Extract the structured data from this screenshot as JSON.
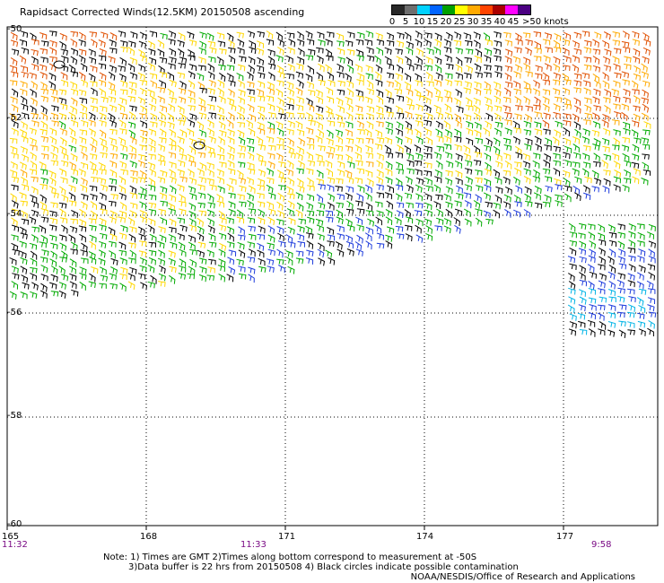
{
  "title": "Rapidsact Corrected Winds(12.5KM) 20150508 ascending",
  "legend": {
    "units": "knots",
    "labels": [
      "0",
      "5",
      "10",
      "15",
      "20",
      "25",
      "30",
      "35",
      "40",
      "45",
      ">50 knots"
    ],
    "colors": [
      "#282828",
      "#6e6e6e",
      "#00d2ff",
      "#0064ff",
      "#00a000",
      "#ffff00",
      "#ffaa00",
      "#ff4400",
      "#aa0000",
      "#ff00ff",
      "#4b0082"
    ]
  },
  "axes": {
    "lon_labels": [
      "165",
      "168",
      "171",
      "174",
      "177"
    ],
    "lat_labels": [
      "-50",
      "-52",
      "-54",
      "-56",
      "-58",
      "-60"
    ]
  },
  "times": {
    "left": "11:32",
    "middle": "11:33",
    "right": "9:58"
  },
  "notes": {
    "line1": "Note: 1) Times are GMT 2)Times along bottom correspond to measurement at -50S",
    "line2": "3)Data buffer is 22 hrs from 20150508 4) Black circles indicate possible contamination"
  },
  "credit": "NOAA/NESDIS/Office of Research and Applications",
  "map_data": {
    "lon_range": [
      165,
      179
    ],
    "lat_range": [
      -60,
      -50
    ],
    "grid": "dotted",
    "wind_colors": {
      "black": "#000000",
      "yellow": "#ffd700",
      "orange": "#ffaa00",
      "red_orange": "#e05000",
      "green": "#00aa00",
      "blue": "#1e3cdc",
      "cyan": "#00b4e6"
    }
  }
}
